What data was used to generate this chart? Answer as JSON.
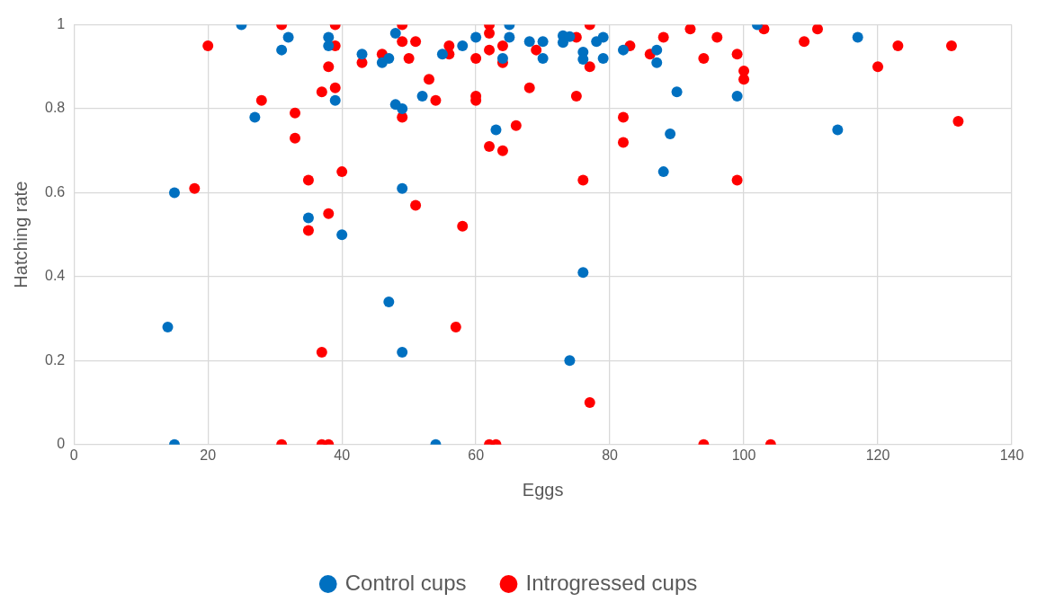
{
  "chart_data": {
    "type": "scatter",
    "xlabel": "Eggs",
    "ylabel": "Hatching rate",
    "xlim": [
      0,
      140
    ],
    "xticks": [
      0,
      20,
      40,
      60,
      80,
      100,
      120,
      140
    ],
    "ylim": [
      0,
      1
    ],
    "yticks": [
      0,
      0.2,
      0.4,
      0.6,
      0.8,
      1
    ],
    "grid": true,
    "legend": "bottom",
    "marker": "circle",
    "series": [
      {
        "name": "Control cups",
        "color": "#0070c0",
        "x": [
          25,
          15,
          14,
          15,
          27,
          31,
          32,
          38,
          38,
          39,
          35,
          40,
          43,
          46,
          47,
          48,
          48,
          49,
          49,
          47,
          49,
          52,
          54,
          55,
          58,
          60,
          63,
          64,
          65,
          65,
          68,
          70,
          70,
          73,
          73,
          74,
          74,
          76,
          76,
          76,
          78,
          79,
          79,
          82,
          87,
          87,
          88,
          89,
          90,
          99,
          102,
          114,
          117
        ],
        "values": [
          1,
          0.6,
          0.28,
          0,
          0.78,
          0.94,
          0.97,
          0.97,
          0.95,
          0.82,
          0.54,
          0.5,
          0.93,
          0.91,
          0.92,
          0.98,
          0.81,
          0.8,
          0.61,
          0.34,
          0.22,
          0.83,
          0,
          0.93,
          0.95,
          0.97,
          0.75,
          0.92,
          1,
          0.97,
          0.96,
          0.96,
          0.92,
          0.974,
          0.958,
          0.972,
          0.2,
          0.935,
          0.918,
          0.41,
          0.96,
          0.97,
          0.92,
          0.94,
          0.94,
          0.91,
          0.65,
          0.74,
          0.84,
          0.83,
          1,
          0.75,
          0.97
        ]
      },
      {
        "name": "Introgressed cups",
        "color": "#ff0000",
        "x": [
          20,
          18,
          28,
          31,
          31,
          33,
          33,
          35,
          35,
          37,
          37,
          37,
          38,
          38,
          38,
          39,
          39,
          39,
          40,
          43,
          46,
          49,
          49,
          49,
          50,
          51,
          51,
          53,
          54,
          56,
          56,
          57,
          58,
          60,
          60,
          60,
          62,
          62,
          62,
          62,
          62,
          63,
          64,
          64,
          64,
          66,
          68,
          69,
          75,
          75,
          76,
          77,
          77,
          77,
          82,
          82,
          83,
          86,
          88,
          92,
          94,
          94,
          96,
          99,
          99,
          100,
          100,
          103,
          104,
          109,
          111,
          120,
          123,
          131,
          132
        ],
        "values": [
          0.95,
          0.61,
          0.82,
          1,
          0,
          0.79,
          0.73,
          0.63,
          0.51,
          0.84,
          0.22,
          0,
          0.9,
          0.55,
          0,
          1,
          0.95,
          0.85,
          0.65,
          0.91,
          0.93,
          1,
          0.96,
          0.78,
          0.92,
          0.96,
          0.57,
          0.87,
          0.82,
          0.95,
          0.93,
          0.28,
          0.52,
          0.83,
          0.82,
          0.92,
          1,
          0.98,
          0.94,
          0.71,
          0,
          0,
          0.95,
          0.91,
          0.7,
          0.76,
          0.85,
          0.94,
          0.97,
          0.83,
          0.63,
          1,
          0.9,
          0.1,
          0.78,
          0.72,
          0.95,
          0.93,
          0.97,
          0.99,
          0.92,
          0,
          0.97,
          0.93,
          0.63,
          0.89,
          0.87,
          0.99,
          0,
          0.96,
          0.99,
          0.9,
          0.95,
          0.95,
          0.77
        ]
      }
    ]
  }
}
